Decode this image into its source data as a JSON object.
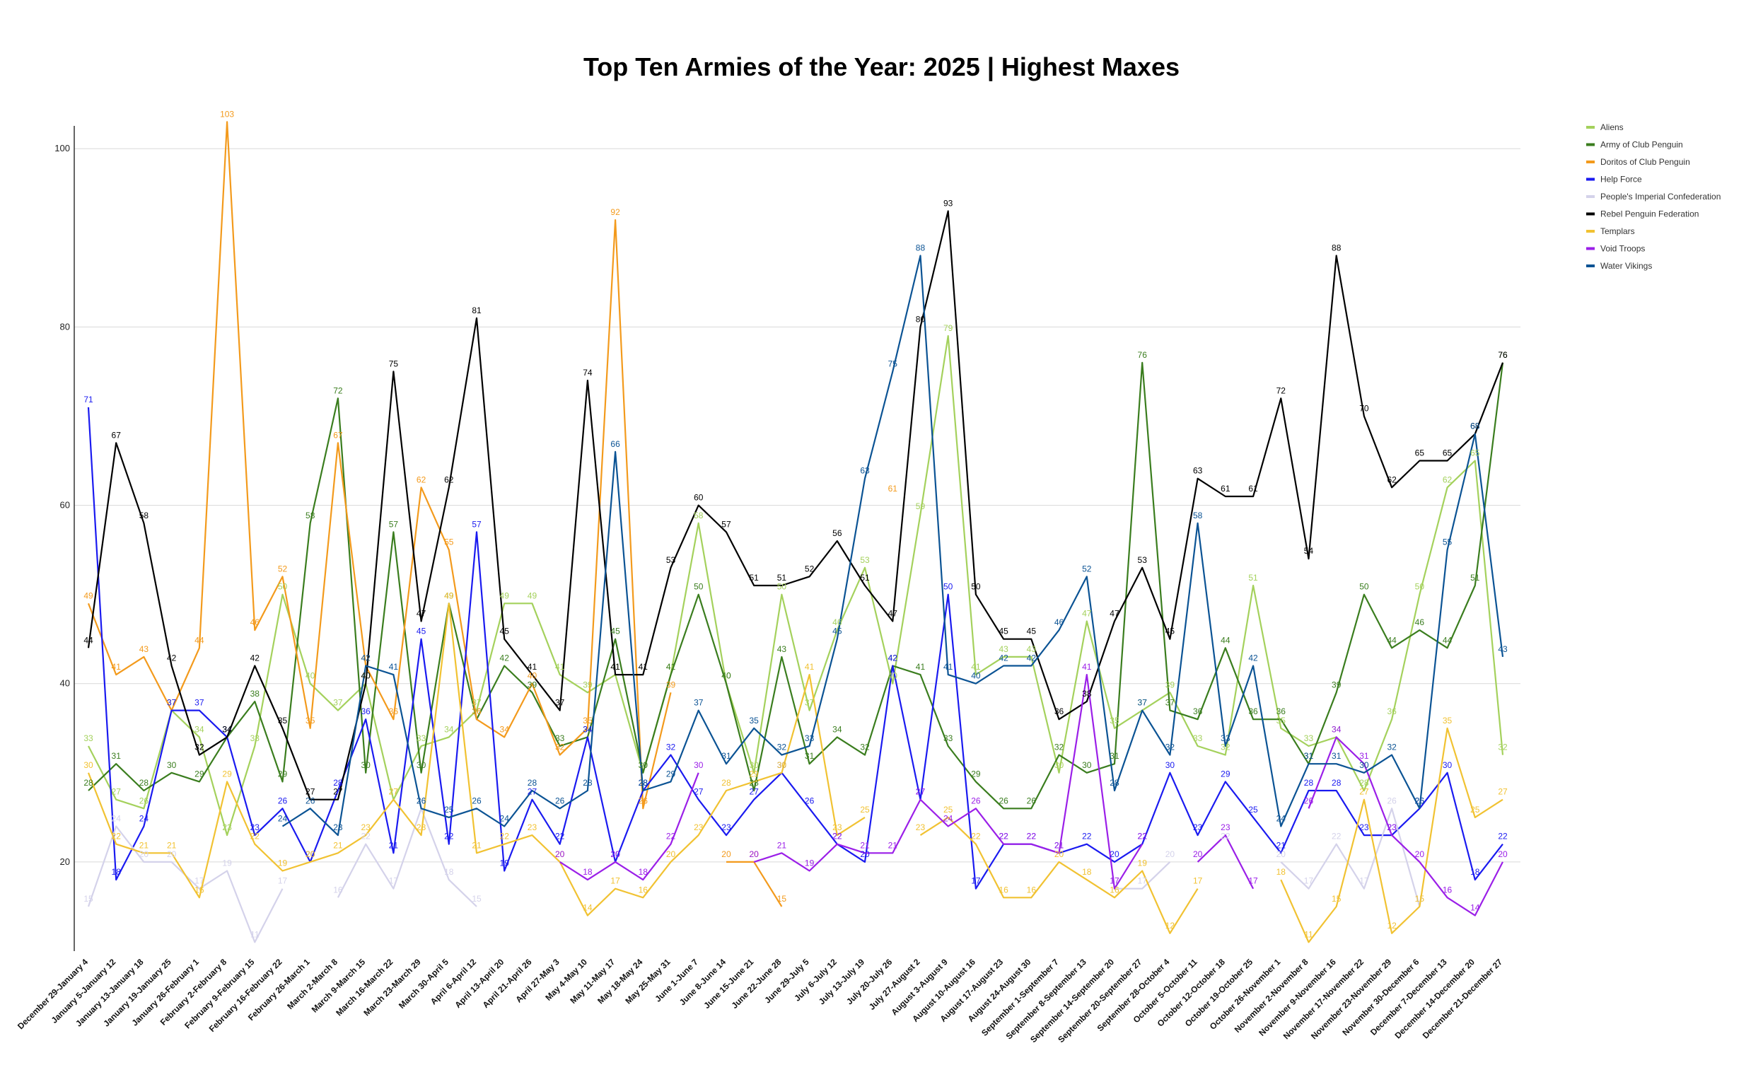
{
  "chart_data": {
    "type": "line",
    "title": "Top Ten Armies of the Year: 2025 | Highest Maxes",
    "xlabel": "",
    "ylabel": "",
    "ylim": [
      10,
      102
    ],
    "yticks": [
      20,
      40,
      60,
      80,
      100
    ],
    "grid": true,
    "legend_position": "right",
    "categories": [
      "December 29-January 4",
      "January 5-January 12",
      "January 13-January 18",
      "January 19-January 25",
      "January 26-February 1",
      "February 2-February 8",
      "February 9-February 15",
      "February 16-February 22",
      "February 26-March 1",
      "March 2-March 8",
      "March 9-March 15",
      "March 16-March 22",
      "March 23-March 29",
      "March 30-April 5",
      "April 6-April 12",
      "April 13-April 20",
      "April 21-April 26",
      "April 27-May 3",
      "May 4-May 10",
      "May 11-May 17",
      "May 18-May 24",
      "May 25-May 31",
      "June 1-June 7",
      "June 8-June 14",
      "June 15-June 21",
      "June 22-June 28",
      "June 29-July 5",
      "July 6-July 12",
      "July 13-July 19",
      "July 20-July 26",
      "July 27-August 2",
      "August 3-August 9",
      "August 10-August 16",
      "August 17-August 23",
      "August 24-August 30",
      "September 1-September 7",
      "September 8-September 13",
      "September 14-September 20",
      "September 20-September 27",
      "September 28-October 4",
      "October 5-October 11",
      "October 12-October 18",
      "October 19-October 25",
      "October 26-November 1",
      "November 2-November 8",
      "November 9-November 16",
      "November 17-November 22",
      "November 23-November 29",
      "November 30-December 6",
      "December 7-December 13",
      "December 14-December 20",
      "December 21-December 27"
    ],
    "series": [
      {
        "name": "Aliens",
        "color": "#a4d15c",
        "values": [
          33,
          27,
          26,
          37,
          34,
          23,
          33,
          50,
          40,
          37,
          40,
          27,
          33,
          34,
          37,
          49,
          49,
          41,
          39,
          41,
          30,
          41,
          58,
          40,
          30,
          50,
          37,
          46,
          53,
          40,
          59,
          79,
          41,
          43,
          43,
          30,
          47,
          35,
          37,
          39,
          33,
          32,
          51,
          35,
          33,
          34,
          28,
          36,
          50,
          62,
          65,
          32
        ]
      },
      {
        "name": "Army of Club Penguin",
        "color": "#3a7d1e",
        "values": [
          28,
          31,
          28,
          30,
          29,
          34,
          38,
          29,
          58,
          72,
          30,
          57,
          30,
          49,
          36,
          42,
          39,
          33,
          34,
          45,
          30,
          41,
          50,
          40,
          28,
          43,
          31,
          34,
          32,
          42,
          41,
          33,
          29,
          26,
          26,
          32,
          30,
          31,
          76,
          37,
          36,
          44,
          36,
          36,
          31,
          39,
          50,
          44,
          46,
          44,
          51,
          76
        ]
      },
      {
        "name": "Doritos of Club Penguin",
        "color": "#f39a1c",
        "values": [
          49,
          41,
          43,
          37,
          44,
          103,
          46,
          52,
          35,
          67,
          42,
          36,
          62,
          55,
          36,
          34,
          40,
          32,
          35,
          92,
          26,
          39,
          null,
          20,
          20,
          15,
          null,
          null,
          null,
          61,
          null,
          null,
          null,
          null,
          null,
          null,
          null,
          null,
          null,
          null,
          null,
          null,
          null,
          null,
          null,
          null,
          null,
          null,
          null,
          null,
          null,
          null
        ]
      },
      {
        "name": "Help Force",
        "color": "#1a1af0",
        "values": [
          71,
          18,
          24,
          37,
          37,
          34,
          23,
          26,
          20,
          28,
          36,
          21,
          45,
          22,
          57,
          19,
          27,
          22,
          34,
          20,
          28,
          32,
          27,
          23,
          27,
          30,
          26,
          22,
          20,
          42,
          27,
          50,
          17,
          22,
          22,
          21,
          22,
          20,
          22,
          30,
          23,
          29,
          25,
          21,
          28,
          28,
          23,
          23,
          26,
          30,
          18,
          22
        ]
      },
      {
        "name": "People's Imperial Confederation",
        "color": "#d4d2ea",
        "values": [
          15,
          24,
          20,
          20,
          17,
          19,
          11,
          17,
          null,
          16,
          22,
          17,
          26,
          18,
          15,
          null,
          null,
          null,
          null,
          null,
          null,
          null,
          null,
          null,
          null,
          null,
          null,
          null,
          null,
          null,
          null,
          null,
          null,
          null,
          null,
          null,
          null,
          17,
          17,
          20,
          null,
          22,
          null,
          20,
          17,
          22,
          17,
          26,
          15,
          null,
          null,
          null
        ]
      },
      {
        "name": "Rebel Penguin Federation",
        "color": "#000000",
        "values": [
          44,
          67,
          58,
          42,
          32,
          34,
          42,
          35,
          27,
          27,
          40,
          75,
          47,
          62,
          81,
          45,
          41,
          37,
          74,
          41,
          41,
          53,
          60,
          57,
          51,
          51,
          52,
          56,
          51,
          47,
          80,
          93,
          50,
          45,
          45,
          36,
          38,
          47,
          53,
          45,
          63,
          61,
          61,
          72,
          54,
          88,
          70,
          62,
          65,
          65,
          68,
          76
        ]
      },
      {
        "name": "Templars",
        "color": "#f1c232",
        "values": [
          30,
          22,
          21,
          21,
          16,
          29,
          22,
          19,
          20,
          21,
          23,
          27,
          23,
          49,
          21,
          22,
          23,
          20,
          14,
          17,
          16,
          20,
          23,
          28,
          29,
          30,
          41,
          23,
          25,
          null,
          23,
          25,
          22,
          16,
          16,
          20,
          18,
          16,
          19,
          12,
          17,
          null,
          null,
          18,
          11,
          15,
          27,
          12,
          15,
          35,
          25,
          27
        ]
      },
      {
        "name": "Void Troops",
        "color": "#9b1fe8",
        "values": [
          null,
          null,
          null,
          null,
          null,
          null,
          null,
          null,
          null,
          null,
          null,
          null,
          null,
          null,
          null,
          null,
          null,
          20,
          18,
          20,
          18,
          22,
          30,
          null,
          20,
          21,
          19,
          22,
          21,
          21,
          27,
          24,
          26,
          22,
          22,
          21,
          41,
          17,
          22,
          null,
          20,
          23,
          17,
          null,
          26,
          34,
          31,
          23,
          20,
          16,
          14,
          20
        ]
      },
      {
        "name": "Water Vikings",
        "color": "#0b5394",
        "values": [
          null,
          null,
          null,
          null,
          null,
          null,
          null,
          24,
          26,
          23,
          42,
          41,
          26,
          25,
          26,
          24,
          28,
          26,
          28,
          66,
          28,
          29,
          37,
          31,
          35,
          32,
          33,
          45,
          63,
          75,
          88,
          41,
          40,
          42,
          42,
          46,
          52,
          28,
          37,
          32,
          58,
          33,
          42,
          24,
          31,
          31,
          30,
          32,
          26,
          55,
          68,
          43
        ]
      }
    ]
  }
}
